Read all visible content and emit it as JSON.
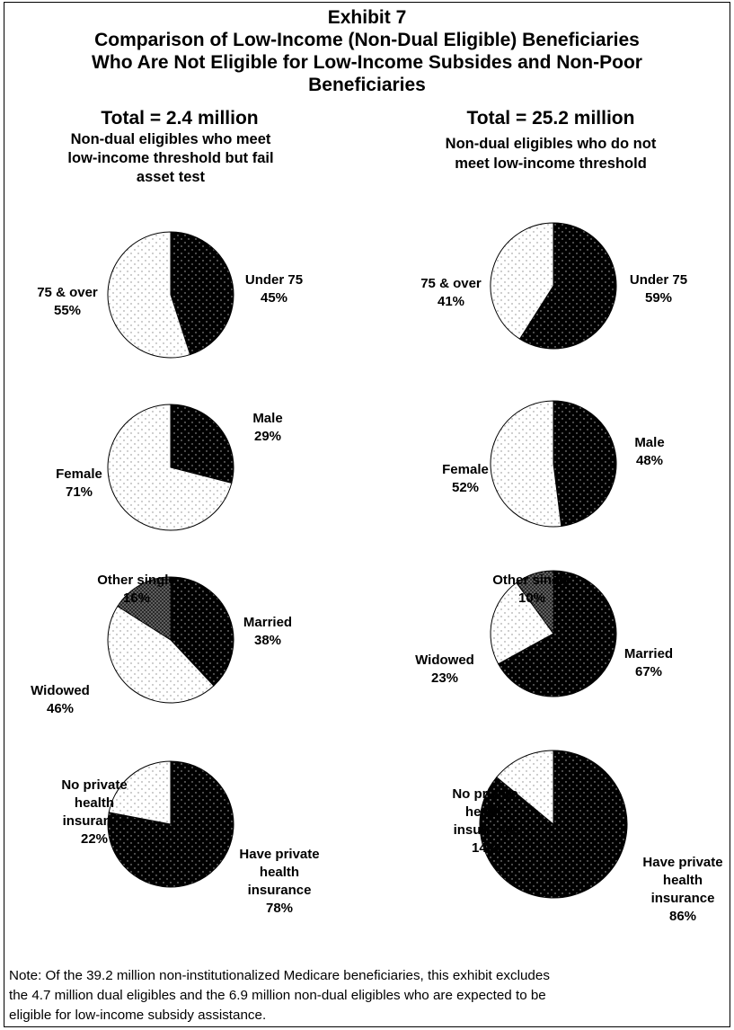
{
  "title": {
    "line1": "Exhibit 7",
    "line2": "Comparison of Low-Income (Non-Dual Eligible) Beneficiaries",
    "line3": "Who Are Not Eligible for Low-Income Subsides and Non-Poor",
    "line4": "Beneficiaries"
  },
  "columns": [
    {
      "total": "Total = 2.4 million",
      "subtitle_lines": [
        "Non-dual eligibles who meet",
        "low-income threshold but fail",
        "asset test"
      ]
    },
    {
      "total": "Total = 25.2 million",
      "subtitle_lines": [
        "Non-dual eligibles who do not",
        "meet low-income threshold"
      ]
    }
  ],
  "chart_data": [
    {
      "type": "pie",
      "column": 0,
      "slices": [
        {
          "label": [
            "Under 75"
          ],
          "pct_text": "45%",
          "value": 45,
          "pattern": "dark"
        },
        {
          "label": [
            "75 & over"
          ],
          "pct_text": "55%",
          "value": 55,
          "pattern": "light"
        }
      ]
    },
    {
      "type": "pie",
      "column": 1,
      "slices": [
        {
          "label": [
            "Under 75"
          ],
          "pct_text": "59%",
          "value": 59,
          "pattern": "dark"
        },
        {
          "label": [
            "75 & over"
          ],
          "pct_text": "41%",
          "value": 41,
          "pattern": "light"
        }
      ]
    },
    {
      "type": "pie",
      "column": 0,
      "slices": [
        {
          "label": [
            "Male"
          ],
          "pct_text": "29%",
          "value": 29,
          "pattern": "dark"
        },
        {
          "label": [
            "Female"
          ],
          "pct_text": "71%",
          "value": 71,
          "pattern": "light"
        }
      ]
    },
    {
      "type": "pie",
      "column": 1,
      "slices": [
        {
          "label": [
            "Male"
          ],
          "pct_text": "48%",
          "value": 48,
          "pattern": "dark"
        },
        {
          "label": [
            "Female"
          ],
          "pct_text": "52%",
          "value": 52,
          "pattern": "light"
        }
      ]
    },
    {
      "type": "pie",
      "column": 0,
      "slices": [
        {
          "label": [
            "Married"
          ],
          "pct_text": "38%",
          "value": 38,
          "pattern": "dark"
        },
        {
          "label": [
            "Widowed"
          ],
          "pct_text": "46%",
          "value": 46,
          "pattern": "light"
        },
        {
          "label": [
            "Other single"
          ],
          "pct_text": "16%",
          "value": 16,
          "pattern": "dense"
        }
      ]
    },
    {
      "type": "pie",
      "column": 1,
      "slices": [
        {
          "label": [
            "Married"
          ],
          "pct_text": "67%",
          "value": 67,
          "pattern": "dark"
        },
        {
          "label": [
            "Widowed"
          ],
          "pct_text": "23%",
          "value": 23,
          "pattern": "light"
        },
        {
          "label": [
            "Other single"
          ],
          "pct_text": "10%",
          "value": 10,
          "pattern": "dense"
        }
      ]
    },
    {
      "type": "pie",
      "column": 0,
      "slices": [
        {
          "label": [
            "Have private",
            "health",
            "insurance"
          ],
          "pct_text": "78%",
          "value": 78,
          "pattern": "dark"
        },
        {
          "label": [
            "No private",
            "health",
            "insurance"
          ],
          "pct_text": "22%",
          "value": 22,
          "pattern": "light"
        }
      ]
    },
    {
      "type": "pie",
      "column": 1,
      "slices": [
        {
          "label": [
            "Have private",
            "health",
            "insurance"
          ],
          "pct_text": "86%",
          "value": 86,
          "pattern": "dark"
        },
        {
          "label": [
            "No private",
            "health",
            "insurance"
          ],
          "pct_text": "14%",
          "value": 14,
          "pattern": "light"
        }
      ]
    }
  ],
  "note": {
    "line1": "Note: Of the 39.2 million non-institutionalized Medicare beneficiaries, this exhibit excludes",
    "line2": "the 4.7 million dual eligibles and the 6.9 million non-dual eligibles who are expected to be",
    "line3": "eligible for low-income subsidy assistance."
  },
  "colors": {
    "dark": "#000000",
    "light": "#ffffff",
    "dot": "#777777"
  }
}
